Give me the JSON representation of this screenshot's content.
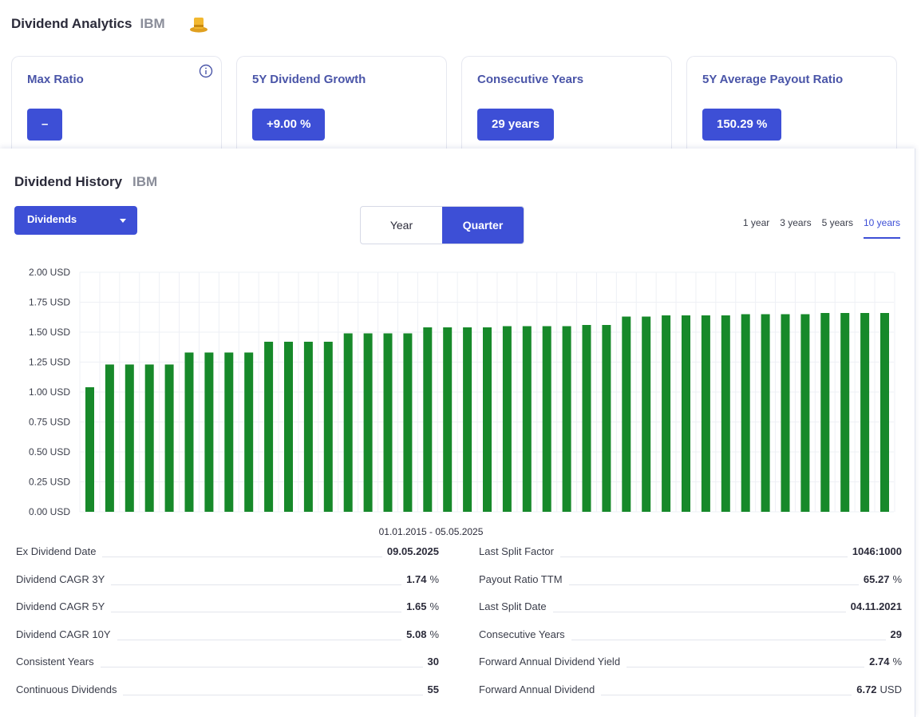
{
  "header": {
    "title": "Dividend Analytics",
    "ticker": "IBM",
    "icon": "top-hat-icon"
  },
  "cards": [
    {
      "title": "Max Ratio",
      "value": "–",
      "has_info": true
    },
    {
      "title": "5Y Dividend Growth",
      "value": "+9.00 %"
    },
    {
      "title": "Consecutive Years",
      "value": "29 years"
    },
    {
      "title": "5Y Average Payout Ratio",
      "value": "150.29 %"
    }
  ],
  "history": {
    "title": "Dividend History",
    "ticker": "IBM",
    "dropdown_value": "Dividends",
    "toggle": [
      "Year",
      "Quarter"
    ],
    "toggle_active": "Quarter",
    "ranges": [
      "1 year",
      "3 years",
      "5 years",
      "10 years"
    ],
    "range_active": "10 years"
  },
  "chart_data": {
    "type": "bar",
    "color": "#17892a",
    "xlabel": "01.01.2015 - 05.05.2025",
    "ylim": [
      0,
      2
    ],
    "yticks": [
      "0.00 USD",
      "0.25 USD",
      "0.50 USD",
      "0.75 USD",
      "1.00 USD",
      "1.25 USD",
      "1.50 USD",
      "1.75 USD",
      "2.00 USD"
    ],
    "values": [
      1.04,
      1.23,
      1.23,
      1.23,
      1.23,
      1.33,
      1.33,
      1.33,
      1.33,
      1.42,
      1.42,
      1.42,
      1.42,
      1.49,
      1.49,
      1.49,
      1.49,
      1.54,
      1.54,
      1.54,
      1.54,
      1.55,
      1.55,
      1.55,
      1.55,
      1.56,
      1.56,
      1.63,
      1.63,
      1.64,
      1.64,
      1.64,
      1.64,
      1.65,
      1.65,
      1.65,
      1.65,
      1.66,
      1.66,
      1.66,
      1.66
    ]
  },
  "stats_left": [
    {
      "label": "Ex Dividend Date",
      "value": "09.05.2025",
      "unit": ""
    },
    {
      "label": "Dividend CAGR 3Y",
      "value": "1.74",
      "unit": "%"
    },
    {
      "label": "Dividend CAGR 5Y",
      "value": "1.65",
      "unit": "%"
    },
    {
      "label": "Dividend CAGR 10Y",
      "value": "5.08",
      "unit": "%"
    },
    {
      "label": "Consistent Years",
      "value": "30",
      "unit": ""
    },
    {
      "label": "Continuous Dividends",
      "value": "55",
      "unit": ""
    }
  ],
  "stats_right": [
    {
      "label": "Last Split Factor",
      "value": "1046:1000",
      "unit": ""
    },
    {
      "label": "Payout Ratio TTM",
      "value": "65.27",
      "unit": "%"
    },
    {
      "label": "Last Split Date",
      "value": "04.11.2021",
      "unit": ""
    },
    {
      "label": "Consecutive Years",
      "value": "29",
      "unit": ""
    },
    {
      "label": "Forward Annual Dividend Yield",
      "value": "2.74",
      "unit": "%"
    },
    {
      "label": "Forward Annual Dividend",
      "value": "6.72",
      "unit": "USD"
    }
  ]
}
